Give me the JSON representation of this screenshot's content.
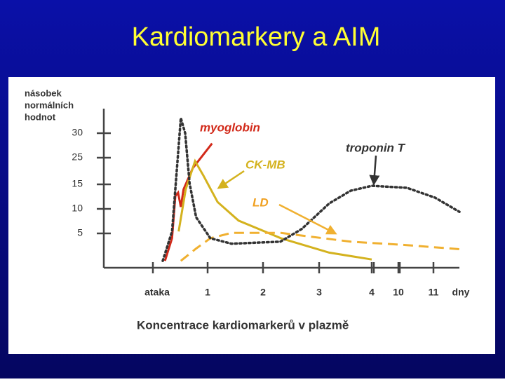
{
  "title": "Kardiomarkery a AIM",
  "chart_data": {
    "type": "line",
    "ylabel": [
      "násobek",
      "normálních",
      "hodnot"
    ],
    "xlabel": "Koncentrace kardiomarkerů v plazmě",
    "xunit": "dny",
    "ylim": [
      0,
      35
    ],
    "yticks": [
      5,
      10,
      15,
      25,
      30
    ],
    "xlim": [
      0,
      11.74
    ],
    "xticks": [
      {
        "value": 0,
        "label": "ataka"
      },
      1,
      2,
      3,
      4,
      10,
      11
    ],
    "axis_break": true,
    "series": [
      {
        "name": "myoglobin",
        "color": "#d22a1a",
        "line_style": "solid",
        "x": [
          0.22,
          0.35,
          0.41,
          0.46,
          0.51,
          0.56,
          0.73,
          1.08
        ],
        "values": [
          1.0,
          4.3,
          12.6,
          13.3,
          10.4,
          14.0,
          21.1,
          27.9
        ]
      },
      {
        "name": "CK-MB",
        "color": "#d4b21e",
        "line_style": "solid",
        "x": [
          0.47,
          0.6,
          0.77,
          0.92,
          1.18,
          1.56,
          2.32,
          3.19,
          4
        ],
        "values": [
          5.4,
          14.0,
          23.7,
          18.4,
          11.4,
          7.6,
          4.3,
          2.2,
          1.2
        ]
      },
      {
        "name": "LD",
        "color": "#f0b030",
        "line_style": "dashed",
        "x": [
          0.51,
          0.79,
          1.05,
          1.43,
          2.32,
          3.6,
          10.24,
          11.74
        ],
        "values": [
          1.0,
          2.8,
          4.3,
          5.1,
          5.1,
          3.8,
          3.3,
          2.7
        ]
      },
      {
        "name": "troponin T",
        "color": "#333333",
        "line_style": "dotted",
        "x": [
          0.18,
          0.35,
          0.44,
          0.51,
          0.59,
          0.67,
          0.79,
          1.05,
          1.43,
          2.31,
          2.69,
          3.19,
          3.6,
          4,
          10.24,
          11.04,
          11.74
        ],
        "values": [
          1.0,
          5.4,
          21.1,
          33.1,
          30,
          15.4,
          8.3,
          4.3,
          3.5,
          3.8,
          5.9,
          11.1,
          13.7,
          14.7,
          14.3,
          12.3,
          9.4
        ]
      }
    ]
  }
}
